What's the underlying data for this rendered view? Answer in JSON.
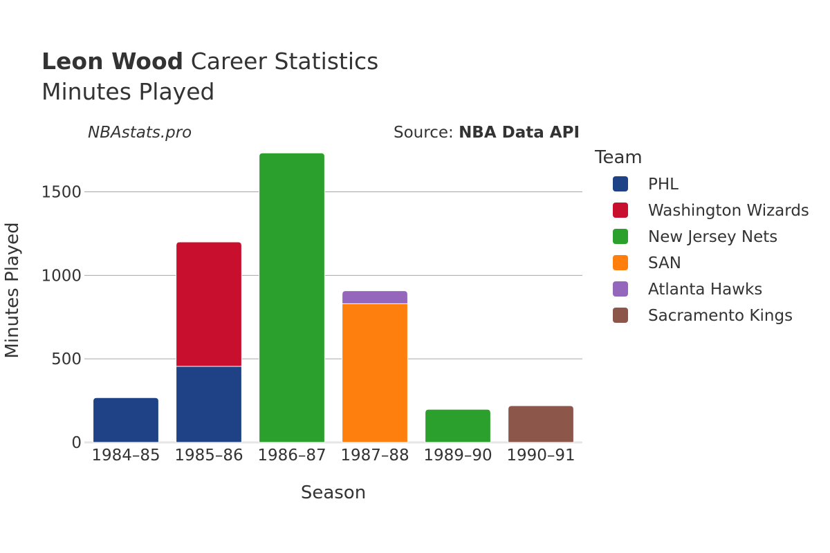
{
  "header": {
    "title_bold": "Leon Wood",
    "title_rest": " Career Statistics",
    "subtitle": "Minutes Played",
    "watermark": "NBAstats.pro",
    "source_prefix": "Source: ",
    "source_bold": "NBA Data API"
  },
  "legend": {
    "title": "Team",
    "placement": "right"
  },
  "chart_data": {
    "type": "bar",
    "stacked": true,
    "xlabel": "Season",
    "ylabel": "Minutes Played",
    "ylim": [
      0,
      1800
    ],
    "yticks": [
      0,
      500,
      1000,
      1500
    ],
    "grid": true,
    "categories": [
      "1984–85",
      "1985–86",
      "1986–87",
      "1987–88",
      "1989–90",
      "1990–91"
    ],
    "series": [
      {
        "name": "PHL",
        "color": "#1f4287",
        "values": [
          268,
          455,
          0,
          0,
          0,
          0
        ]
      },
      {
        "name": "Washington Wizards",
        "color": "#c8102e",
        "values": [
          0,
          745,
          0,
          0,
          0,
          0
        ]
      },
      {
        "name": "New Jersey Nets",
        "color": "#2ca02c",
        "values": [
          0,
          0,
          1733,
          0,
          198,
          0
        ]
      },
      {
        "name": "SAN",
        "color": "#ff7f0e",
        "values": [
          0,
          0,
          0,
          830,
          0,
          0
        ]
      },
      {
        "name": "Atlanta Hawks",
        "color": "#9467bd",
        "values": [
          0,
          0,
          0,
          78,
          0,
          0
        ]
      },
      {
        "name": "Sacramento Kings",
        "color": "#8c564b",
        "values": [
          0,
          0,
          0,
          0,
          0,
          220
        ]
      }
    ]
  }
}
